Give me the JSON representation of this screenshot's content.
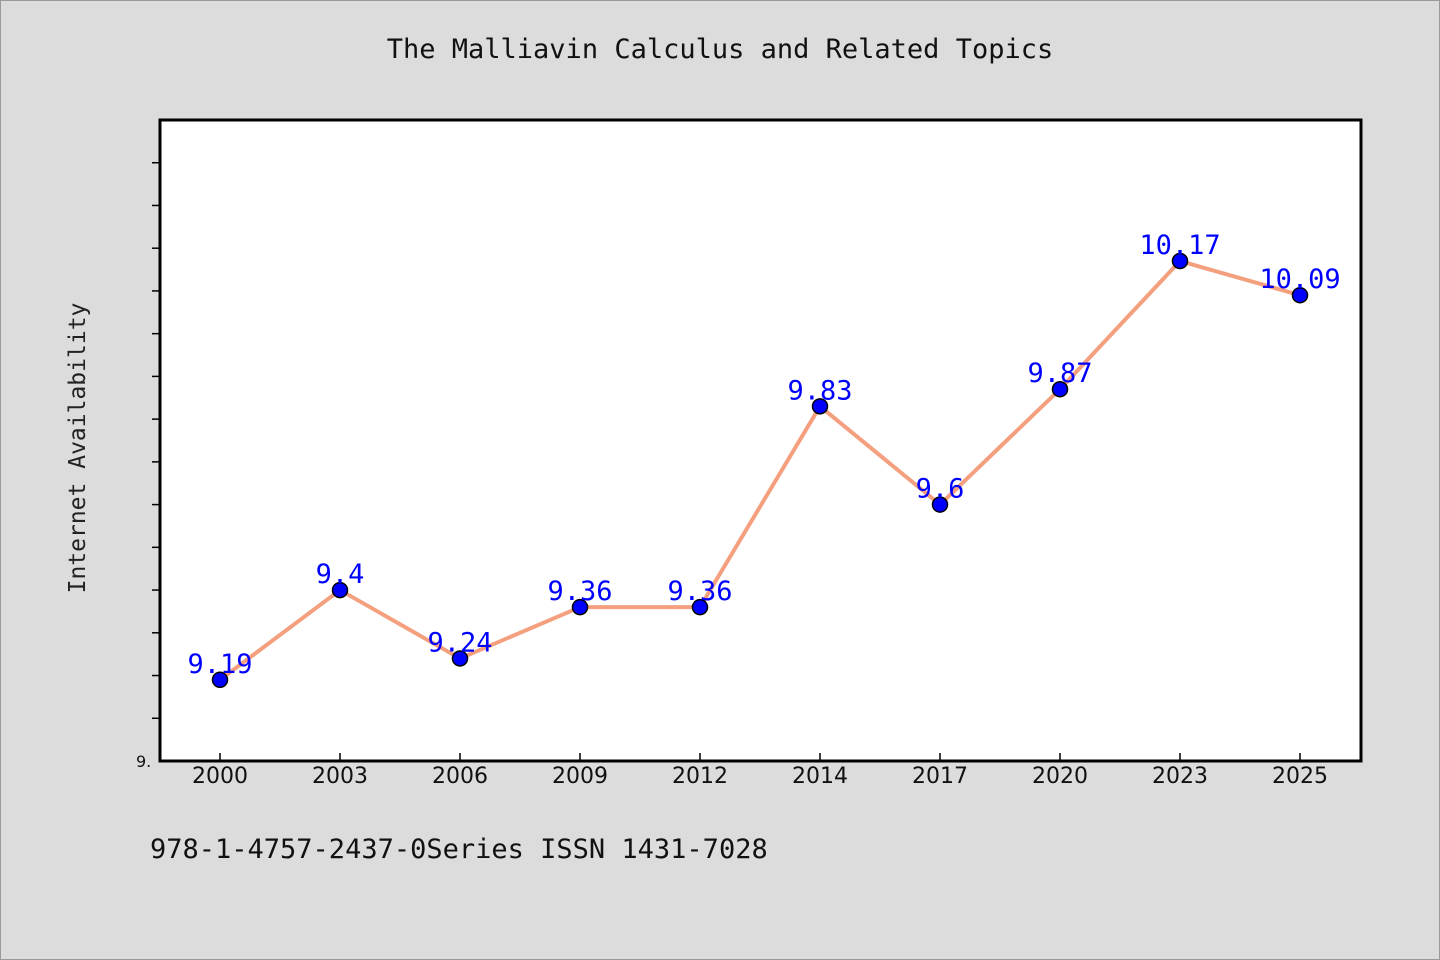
{
  "chart_data": {
    "type": "line",
    "title": "The Malliavin Calculus and Related Topics",
    "ylabel": "Internet Availability",
    "xlabel": "",
    "categories": [
      "2000",
      "2003",
      "2006",
      "2009",
      "2012",
      "2014",
      "2017",
      "2020",
      "2023",
      "2025"
    ],
    "series": [
      {
        "values": [
          9.19,
          9.4,
          9.24,
          9.36,
          9.36,
          9.83,
          9.6,
          9.87,
          10.17,
          10.09
        ],
        "data_labels": [
          "9.19",
          "9.4",
          "9.24",
          "9.36",
          "9.36",
          "9.83",
          "9.6",
          "9.87",
          "10.17",
          "10.09"
        ]
      }
    ],
    "ylim": [
      9.0,
      10.5
    ],
    "y_tick_labels": [
      "9."
    ],
    "y_minor_tick_step": 0.1,
    "grid": false,
    "colors": {
      "line": "#f4a07f",
      "marker": "#0000ff",
      "marker_edge": "#000000",
      "data_label": "#0000ff",
      "plot_background": "#ffffff",
      "figure_background": "#dcdcdc"
    }
  },
  "footer": {
    "text": "978-1-4757-2437-0Series ISSN 1431-7028"
  }
}
